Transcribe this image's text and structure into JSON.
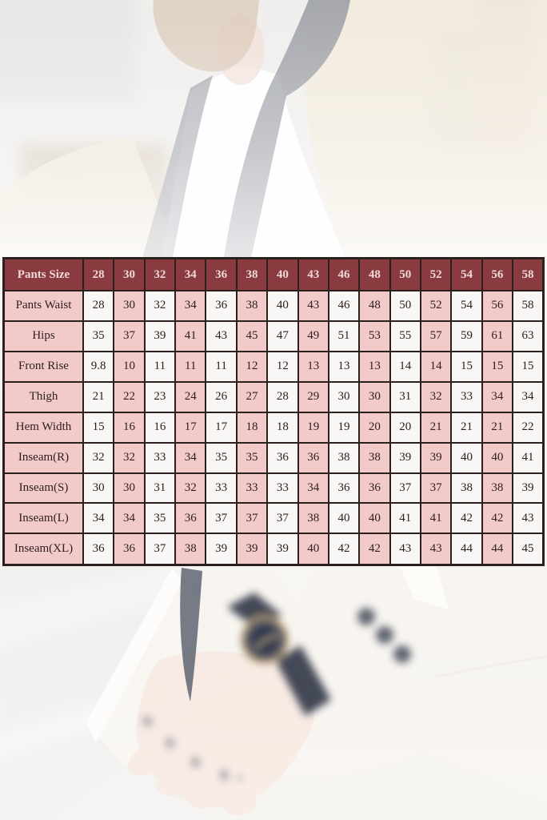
{
  "theme": {
    "header_bg": "#8a3b40",
    "header_text": "#f0d8d8",
    "pink_cell": "#f2caca",
    "white_cell": "#f8f7f5",
    "border": "#2a201e",
    "cell_text": "#2e1e1e",
    "photo_suit": "#ece0cc",
    "photo_lapel": "#565c6a",
    "photo_watch_gold": "#c0a87e",
    "photo_watch_face": "#3f485e"
  },
  "chart_data": {
    "type": "table",
    "title": "Pants Size",
    "columns": [
      "28",
      "30",
      "32",
      "34",
      "36",
      "38",
      "40",
      "43",
      "46",
      "48",
      "50",
      "52",
      "54",
      "56",
      "58"
    ],
    "rows": [
      {
        "label": "Pants Waist",
        "values": [
          "28",
          "30",
          "32",
          "34",
          "36",
          "38",
          "40",
          "43",
          "46",
          "48",
          "50",
          "52",
          "54",
          "56",
          "58"
        ]
      },
      {
        "label": "Hips",
        "values": [
          "35",
          "37",
          "39",
          "41",
          "43",
          "45",
          "47",
          "49",
          "51",
          "53",
          "55",
          "57",
          "59",
          "61",
          "63"
        ]
      },
      {
        "label": "Front Rise",
        "values": [
          "9.8",
          "10",
          "11",
          "11",
          "11",
          "12",
          "12",
          "13",
          "13",
          "13",
          "14",
          "14",
          "15",
          "15",
          "15"
        ]
      },
      {
        "label": "Thigh",
        "values": [
          "21",
          "22",
          "23",
          "24",
          "26",
          "27",
          "28",
          "29",
          "30",
          "30",
          "31",
          "32",
          "33",
          "34",
          "34"
        ]
      },
      {
        "label": "Hem Width",
        "values": [
          "15",
          "16",
          "16",
          "17",
          "17",
          "18",
          "18",
          "19",
          "19",
          "20",
          "20",
          "21",
          "21",
          "21",
          "22"
        ]
      },
      {
        "label": "Inseam(R)",
        "values": [
          "32",
          "32",
          "33",
          "34",
          "35",
          "35",
          "36",
          "36",
          "38",
          "38",
          "39",
          "39",
          "40",
          "40",
          "41"
        ]
      },
      {
        "label": "Inseam(S)",
        "values": [
          "30",
          "30",
          "31",
          "32",
          "33",
          "33",
          "33",
          "34",
          "36",
          "36",
          "37",
          "37",
          "38",
          "38",
          "39"
        ]
      },
      {
        "label": "Inseam(L)",
        "values": [
          "34",
          "34",
          "35",
          "36",
          "37",
          "37",
          "37",
          "38",
          "40",
          "40",
          "41",
          "41",
          "42",
          "42",
          "43"
        ]
      },
      {
        "label": "Inseam(XL)",
        "values": [
          "36",
          "36",
          "37",
          "38",
          "39",
          "39",
          "39",
          "40",
          "42",
          "42",
          "43",
          "43",
          "44",
          "44",
          "45"
        ]
      }
    ],
    "layout": {
      "header_position": "top",
      "label_column_position": "left",
      "column_background_alternation": [
        "white",
        "pink"
      ]
    }
  },
  "background_photo": {
    "elements": [
      "bearded-man",
      "cream-tuxedo-jacket",
      "white-dress-shirt",
      "dark-lapels",
      "wrist-watch",
      "tattooed-hand",
      "sleeve-cuff-buttons"
    ]
  }
}
